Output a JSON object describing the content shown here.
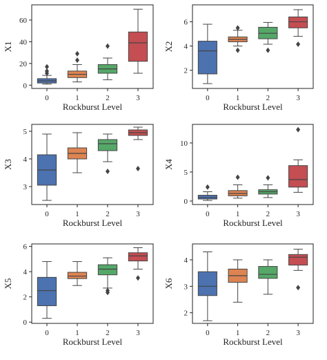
{
  "chart_data": [
    {
      "type": "box",
      "ylabel": "X1",
      "xlabel": "Rockburst Level",
      "categories": [
        "0",
        "1",
        "2",
        "3"
      ],
      "colors": [
        "#4c72b0",
        "#dd8452",
        "#55a868",
        "#c44e52"
      ],
      "ylim": [
        -3,
        74
      ],
      "yticks": [
        0,
        20,
        40,
        60
      ],
      "yticklabels": [
        "0",
        "20",
        "40",
        "60"
      ],
      "boxes": [
        {
          "whislo": 1,
          "q1": 2,
          "med": 4,
          "q3": 6,
          "whishi": 9,
          "fliers": [
            11,
            13,
            17
          ]
        },
        {
          "whislo": 3,
          "q1": 7,
          "med": 10,
          "q3": 13,
          "whishi": 19,
          "fliers": [
            23,
            29
          ]
        },
        {
          "whislo": 5,
          "q1": 11,
          "med": 15,
          "q3": 19,
          "whishi": 25,
          "fliers": [
            36
          ]
        },
        {
          "whislo": 11,
          "q1": 22,
          "med": 39,
          "q3": 49,
          "whishi": 70,
          "fliers": []
        }
      ]
    },
    {
      "type": "box",
      "ylabel": "X2",
      "xlabel": "Rockburst Level",
      "categories": [
        "0",
        "1",
        "2",
        "3"
      ],
      "colors": [
        "#4c72b0",
        "#dd8452",
        "#55a868",
        "#c44e52"
      ],
      "ylim": [
        0.5,
        7.4
      ],
      "yticks": [
        2,
        4,
        6
      ],
      "yticklabels": [
        "2",
        "4",
        "6"
      ],
      "boxes": [
        {
          "whislo": 0.9,
          "q1": 1.7,
          "med": 3.6,
          "q3": 4.4,
          "whishi": 5.8,
          "fliers": []
        },
        {
          "whislo": 4.0,
          "q1": 4.35,
          "med": 4.55,
          "q3": 4.75,
          "whishi": 5.3,
          "fliers": [
            3.65,
            5.5
          ]
        },
        {
          "whislo": 4.15,
          "q1": 4.6,
          "med": 5.05,
          "q3": 5.55,
          "whishi": 5.95,
          "fliers": [
            3.65
          ]
        },
        {
          "whislo": 4.8,
          "q1": 5.5,
          "med": 6.0,
          "q3": 6.4,
          "whishi": 7.0,
          "fliers": [
            4.15
          ]
        }
      ]
    },
    {
      "type": "box",
      "ylabel": "X3",
      "xlabel": "Rockburst Level",
      "categories": [
        "0",
        "1",
        "2",
        "3"
      ],
      "colors": [
        "#4c72b0",
        "#dd8452",
        "#55a868",
        "#c44e52"
      ],
      "ylim": [
        2.35,
        5.25
      ],
      "yticks": [
        3,
        4,
        5
      ],
      "yticklabels": [
        "3",
        "4",
        "5"
      ],
      "boxes": [
        {
          "whislo": 2.5,
          "q1": 3.05,
          "med": 3.6,
          "q3": 4.15,
          "whishi": 4.9,
          "fliers": []
        },
        {
          "whislo": 3.5,
          "q1": 4.0,
          "med": 4.2,
          "q3": 4.4,
          "whishi": 4.95,
          "fliers": []
        },
        {
          "whislo": 3.9,
          "q1": 4.3,
          "med": 4.55,
          "q3": 4.7,
          "whishi": 4.9,
          "fliers": [
            3.55
          ]
        },
        {
          "whislo": 4.7,
          "q1": 4.85,
          "med": 4.95,
          "q3": 5.05,
          "whishi": 5.15,
          "fliers": [
            3.65
          ]
        }
      ]
    },
    {
      "type": "box",
      "ylabel": "X4",
      "xlabel": "Rockburst Level",
      "categories": [
        "0",
        "1",
        "2",
        "3"
      ],
      "colors": [
        "#4c72b0",
        "#dd8452",
        "#55a868",
        "#c44e52"
      ],
      "ylim": [
        -0.6,
        13.2
      ],
      "yticks": [
        0,
        5,
        10
      ],
      "yticklabels": [
        "0",
        "5",
        "10"
      ],
      "boxes": [
        {
          "whislo": 0.1,
          "q1": 0.35,
          "med": 0.6,
          "q3": 1.0,
          "whishi": 1.6,
          "fliers": [
            2.4
          ]
        },
        {
          "whislo": 0.5,
          "q1": 0.9,
          "med": 1.3,
          "q3": 1.8,
          "whishi": 2.8,
          "fliers": [
            4.1
          ]
        },
        {
          "whislo": 0.6,
          "q1": 1.2,
          "med": 1.6,
          "q3": 1.95,
          "whishi": 2.8,
          "fliers": [
            4.0
          ]
        },
        {
          "whislo": 1.5,
          "q1": 2.4,
          "med": 3.7,
          "q3": 6.1,
          "whishi": 7.1,
          "fliers": [
            12.3
          ]
        }
      ]
    },
    {
      "type": "box",
      "ylabel": "X5",
      "xlabel": "Rockburst Level",
      "categories": [
        "0",
        "1",
        "2",
        "3"
      ],
      "colors": [
        "#4c72b0",
        "#dd8452",
        "#55a868",
        "#c44e52"
      ],
      "ylim": [
        -0.1,
        6.2
      ],
      "yticks": [
        0,
        2,
        4,
        6
      ],
      "yticklabels": [
        "0",
        "2",
        "4",
        "6"
      ],
      "boxes": [
        {
          "whislo": 0.3,
          "q1": 1.3,
          "med": 2.5,
          "q3": 3.55,
          "whishi": 4.8,
          "fliers": []
        },
        {
          "whislo": 2.9,
          "q1": 3.45,
          "med": 3.65,
          "q3": 3.95,
          "whishi": 4.8,
          "fliers": []
        },
        {
          "whislo": 2.7,
          "q1": 3.75,
          "med": 4.2,
          "q3": 4.55,
          "whishi": 5.1,
          "fliers": [
            2.5,
            2.35
          ]
        },
        {
          "whislo": 4.2,
          "q1": 4.85,
          "med": 5.25,
          "q3": 5.5,
          "whishi": 5.9,
          "fliers": [
            3.5
          ]
        }
      ]
    },
    {
      "type": "box",
      "ylabel": "X6",
      "xlabel": "Rockburst Level",
      "categories": [
        "0",
        "1",
        "2",
        "3"
      ],
      "colors": [
        "#4c72b0",
        "#dd8452",
        "#55a868",
        "#c44e52"
      ],
      "ylim": [
        1.6,
        4.6
      ],
      "yticks": [
        2,
        3,
        4
      ],
      "yticklabels": [
        "2",
        "3",
        "4"
      ],
      "boxes": [
        {
          "whislo": 1.7,
          "q1": 2.65,
          "med": 3.0,
          "q3": 3.55,
          "whishi": 4.3,
          "fliers": []
        },
        {
          "whislo": 2.4,
          "q1": 3.15,
          "med": 3.4,
          "q3": 3.65,
          "whishi": 4.0,
          "fliers": []
        },
        {
          "whislo": 2.7,
          "q1": 3.3,
          "med": 3.45,
          "q3": 3.75,
          "whishi": 4.0,
          "fliers": []
        },
        {
          "whislo": 3.6,
          "q1": 3.8,
          "med": 4.1,
          "q3": 4.2,
          "whishi": 4.4,
          "fliers": [
            2.95
          ]
        }
      ]
    }
  ]
}
